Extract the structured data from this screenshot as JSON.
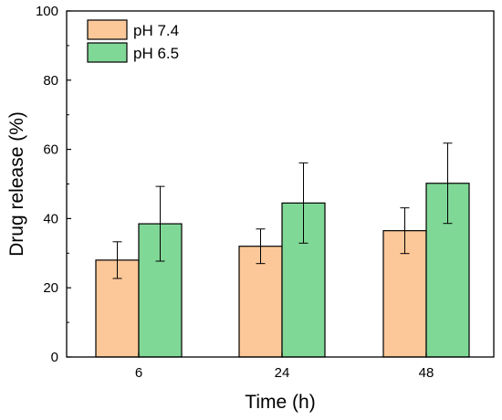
{
  "chart_data": {
    "type": "bar",
    "xlabel": "Time (h)",
    "ylabel": "Drug release (%)",
    "categories": [
      "6",
      "24",
      "48"
    ],
    "ylim": [
      0,
      100
    ],
    "yticks": [
      0,
      20,
      40,
      60,
      80,
      100
    ],
    "grid": false,
    "legend_position": "top-left",
    "series": [
      {
        "name": "pH 7.4",
        "color": "#FDC899",
        "values": [
          28.0,
          32.0,
          36.5
        ],
        "errors": [
          5.3,
          5.0,
          6.6
        ]
      },
      {
        "name": "pH 6.5",
        "color": "#80D897",
        "values": [
          38.5,
          44.5,
          50.2
        ],
        "errors": [
          10.8,
          11.6,
          11.6
        ]
      }
    ]
  }
}
